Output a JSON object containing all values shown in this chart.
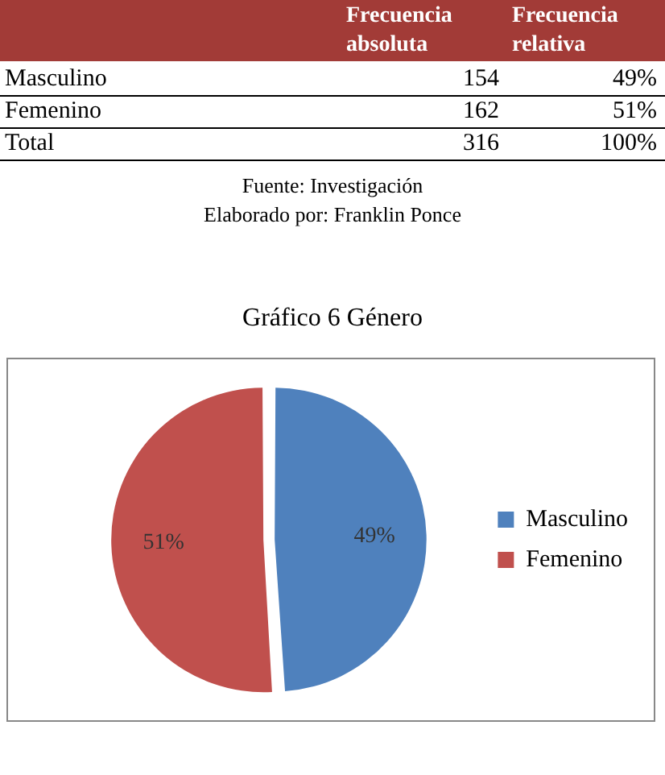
{
  "chart_data": [
    {
      "type": "other",
      "data_labels": true,
      "categories": [
        "Masculino",
        "Femenino",
        "Total"
      ],
      "series": [
        {
          "name": "Frecuencia absoluta",
          "values": [
            154,
            162,
            316
          ]
        },
        {
          "name": "Frecuencia relativa",
          "values": [
            49,
            51,
            100
          ],
          "value_labels": [
            "49%",
            "51%",
            "100%"
          ]
        }
      ],
      "annotations": [
        "Fuente: Investigación",
        "Elaborado por: Franklin Ponce"
      ]
    },
    {
      "type": "pie",
      "title": "Gráfico 6  Género",
      "categories": [
        "Masculino",
        "Femenino"
      ],
      "values": [
        49,
        51
      ],
      "colors": [
        "#4f81bd",
        "#c0504d"
      ],
      "value_labels": [
        "49%",
        "51%"
      ],
      "legend": "right"
    }
  ]
}
